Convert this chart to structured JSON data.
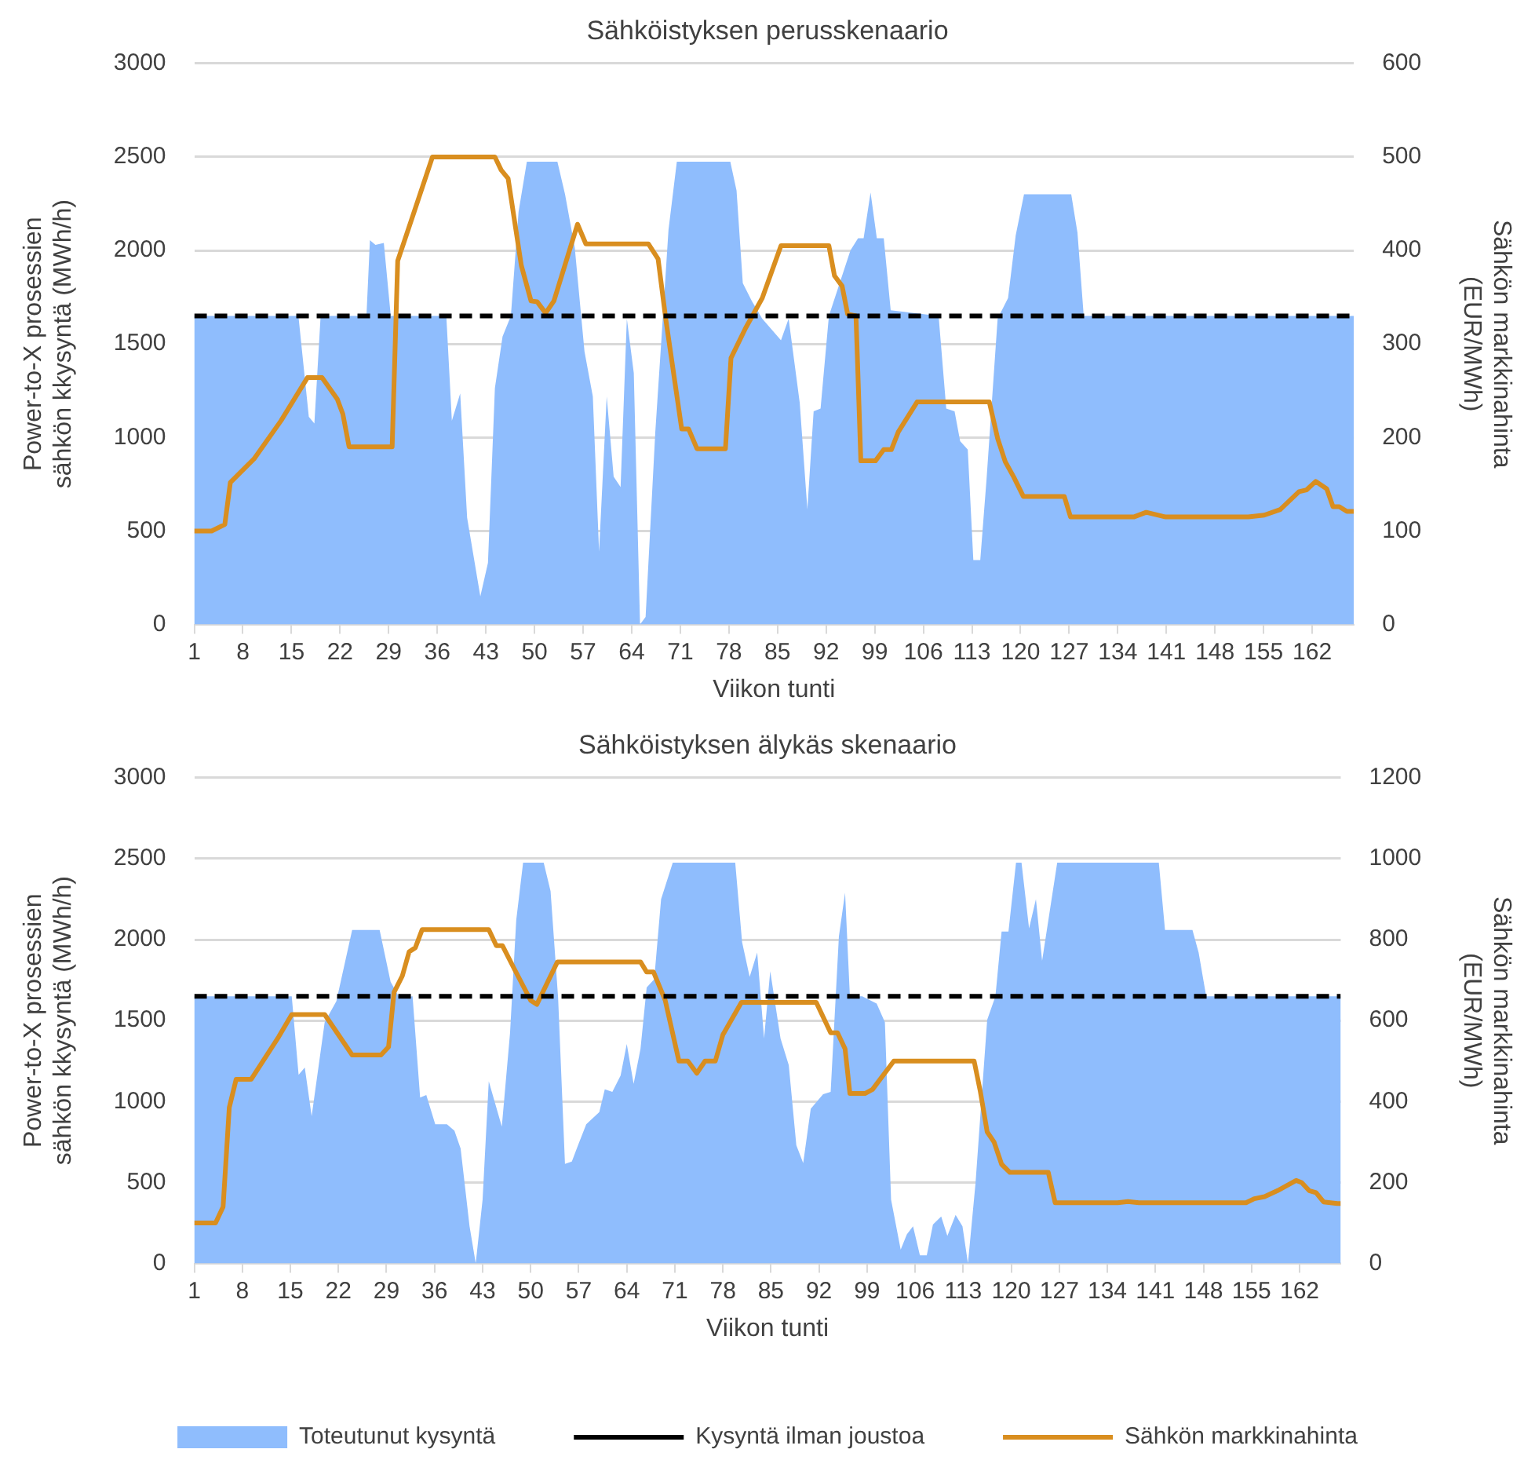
{
  "chart_data": [
    {
      "type": "area",
      "title": "Sähköistyksen perusskenaario",
      "xlabel": "Viikon tunti",
      "ylabel": "Power-to-X prosessien\nsähkön kkysyntä (MWh/h)",
      "y2label": "Sähkön markkinahinta\n(EUR/MWh)",
      "xlim": [
        1,
        168
      ],
      "xticks": [
        1,
        8,
        15,
        22,
        29,
        36,
        43,
        50,
        57,
        64,
        71,
        78,
        85,
        92,
        99,
        106,
        113,
        120,
        127,
        134,
        141,
        148,
        155,
        162
      ],
      "ylim": [
        0,
        3000
      ],
      "yticks": [
        0,
        500,
        1000,
        1500,
        2000,
        2500,
        3000
      ],
      "y2lim": [
        0,
        600
      ],
      "y2ticks": [
        0,
        100,
        200,
        300,
        400,
        500,
        600
      ],
      "grid": "y",
      "legend": false,
      "series": [
        {
          "color": "#8fbdfd",
          "x": [
            1,
            16,
            17.5,
            18.3,
            19.2,
            25.8,
            26.3,
            27.1,
            28.3,
            29.3,
            37.3,
            38.1,
            39.3,
            40.3,
            42.2,
            43.3,
            44.3,
            45.4,
            46.6,
            47.7,
            48.9,
            53.3,
            54.4,
            55.8,
            57.2,
            58.4,
            59.3,
            60.4,
            61.4,
            62.4,
            63.3,
            64.3,
            65.2,
            66,
            67.4,
            68.5,
            69.3,
            70.5,
            78.2,
            79.1,
            80,
            81.3,
            82.8,
            85.5,
            86.6,
            88.2,
            89.3,
            90.2,
            91.2,
            92.4,
            95.5,
            96.6,
            97.4,
            98.4,
            99.3,
            100.3,
            101.3,
            108.2,
            109.3,
            110.5,
            111.3,
            112.4,
            113.2,
            114.2,
            115.1,
            116.7,
            118.2,
            119.3,
            120.5,
            127.3,
            128.2,
            129.1,
            168
          ],
          "values": [
            1650,
            1650,
            1110,
            1075,
            1650,
            1650,
            2055,
            2030,
            2040,
            1650,
            1650,
            1090,
            1235,
            570,
            150,
            330,
            1265,
            1540,
            1650,
            2205,
            2475,
            2475,
            2300,
            2015,
            1460,
            1220,
            390,
            1220,
            790,
            735,
            1635,
            1345,
            0,
            40,
            1030,
            1650,
            2110,
            2475,
            2475,
            2320,
            1825,
            1730,
            1635,
            1520,
            1635,
            1185,
            615,
            1140,
            1155,
            1650,
            2000,
            2065,
            2065,
            2310,
            2065,
            2065,
            1680,
            1650,
            1155,
            1140,
            980,
            935,
            345,
            345,
            775,
            1635,
            1745,
            2080,
            2300,
            2300,
            2095,
            1650,
            1650
          ]
        },
        {
          "type": "line",
          "color": "#000000",
          "line_style": "dashed",
          "x": [
            1,
            8,
            15,
            22,
            29,
            36,
            43,
            50,
            57,
            64,
            71,
            78,
            85,
            92,
            99,
            106,
            113,
            120,
            127,
            134,
            141,
            148,
            155,
            162,
            168
          ],
          "values": [
            1650,
            1650,
            1650,
            1650,
            1650,
            1650,
            1650,
            1650,
            1650,
            1650,
            1650,
            1650,
            1650,
            1650,
            1650,
            1650,
            1650,
            1650,
            1650,
            1650,
            1650,
            1650,
            1650,
            1650,
            1650
          ]
        },
        {
          "type": "line",
          "color": "#d98e1f",
          "axis": "y2",
          "x": [
            1,
            3.5,
            5.4,
            6.2,
            9.6,
            13.5,
            17.3,
            19.4,
            21.6,
            22.4,
            23.3,
            29.5,
            30.3,
            32.7,
            35.3,
            44.3,
            45.2,
            46.2,
            48.1,
            49.5,
            50.4,
            51.6,
            52.8,
            56.2,
            57.4,
            66.4,
            67.8,
            68.9,
            71.2,
            72.2,
            73.4,
            77.5,
            78.3,
            80.4,
            82.8,
            85.5,
            92.4,
            93.2,
            94.3,
            95.1,
            96.3,
            97,
            99.1,
            100.3,
            101.4,
            102.4,
            105.1,
            115.5,
            116.7,
            117.8,
            119,
            120.4,
            126.3,
            127.2,
            136.3,
            138.1,
            140.9,
            152.8,
            155.1,
            157.4,
            160.1,
            161.2,
            162.5,
            164.1,
            165,
            165.9,
            167,
            168
          ],
          "values": [
            100,
            100,
            107,
            152,
            177,
            218,
            264,
            264,
            241,
            225,
            190,
            190,
            389,
            442,
            500,
            500,
            486,
            477,
            384,
            346,
            345,
            333,
            346,
            428,
            407,
            407,
            391,
            327,
            209,
            209,
            188,
            188,
            285,
            317,
            349,
            405,
            405,
            373,
            362,
            332,
            330,
            175,
            175,
            187,
            187,
            206,
            238,
            238,
            199,
            174,
            158,
            137,
            137,
            115,
            115,
            120,
            115,
            115,
            117,
            123,
            142,
            144,
            153,
            145,
            126,
            126,
            121,
            121
          ]
        }
      ]
    },
    {
      "type": "area",
      "title": "Sähköistyksen älykäs skenaario",
      "xlabel": "Viikon tunti",
      "ylabel": "Power-to-X prosessien\nsähkön kkysyntä (MWh/h)",
      "y2label": "Sähkön markkinahinta\n(EUR/MWh)",
      "xlim": [
        1,
        168
      ],
      "xticks": [
        1,
        8,
        15,
        22,
        29,
        36,
        43,
        50,
        57,
        64,
        71,
        78,
        85,
        92,
        99,
        106,
        113,
        120,
        127,
        134,
        141,
        148,
        155,
        162
      ],
      "ylim": [
        0,
        3000
      ],
      "yticks": [
        0,
        500,
        1000,
        1500,
        2000,
        2500,
        3000
      ],
      "y2lim": [
        0,
        1200
      ],
      "y2ticks": [
        0,
        200,
        400,
        600,
        800,
        1000,
        1200
      ],
      "grid": "y",
      "legend": "bottom",
      "series": [
        {
          "name": "Toteutunut kysyntä",
          "color": "#8fbdfd",
          "x": [
            1,
            15.2,
            16.2,
            17.1,
            18.1,
            20,
            21.7,
            24,
            28,
            29.6,
            30.9,
            32.8,
            33.9,
            34.8,
            36.1,
            37.8,
            38.9,
            39.8,
            41.1,
            42,
            43,
            43.9,
            45.8,
            47,
            47.9,
            48.9,
            51.9,
            52.9,
            54,
            55,
            56,
            56.9,
            58.1,
            60,
            60.8,
            61.9,
            63.1,
            64,
            65,
            66,
            66.9,
            68,
            69,
            70.7,
            79.8,
            80.8,
            81.9,
            83,
            84,
            84.9,
            86.4,
            87.6,
            88.7,
            89.7,
            90.8,
            92.6,
            93.7,
            94.9,
            95.8,
            96.5,
            98.3,
            100.4,
            101.6,
            102.5,
            103.9,
            104.8,
            105.7,
            106.7,
            107.7,
            108.6,
            109.8,
            110.7,
            111.9,
            112.9,
            113.7,
            114.8,
            116.5,
            117.7,
            118.6,
            119.6,
            120.7,
            121.5,
            122.6,
            123.6,
            124.5,
            126.7,
            141.5,
            142.4,
            146.4,
            147.3,
            148.4,
            168
          ],
          "values": [
            1650,
            1650,
            1165,
            1210,
            910,
            1490,
            1620,
            2060,
            2060,
            1740,
            1640,
            1650,
            1025,
            1040,
            860,
            860,
            820,
            710,
            230,
            0,
            395,
            1125,
            845,
            1425,
            2120,
            2475,
            2475,
            2300,
            1640,
            615,
            630,
            730,
            860,
            935,
            1075,
            1060,
            1160,
            1355,
            1110,
            1325,
            1705,
            1755,
            2250,
            2475,
            2475,
            1985,
            1770,
            1920,
            1390,
            1805,
            1390,
            1225,
            730,
            620,
            955,
            1045,
            1060,
            2020,
            2290,
            1650,
            1650,
            1605,
            1490,
            395,
            85,
            180,
            230,
            50,
            50,
            240,
            290,
            170,
            300,
            230,
            0,
            495,
            1505,
            1650,
            2050,
            2050,
            2475,
            2475,
            2070,
            2250,
            1870,
            2475,
            2475,
            2060,
            2060,
            1920,
            1650,
            1650
          ]
        },
        {
          "type": "line",
          "name": "Kysyntä ilman joustoa",
          "color": "#000000",
          "line_style": "dashed",
          "x": [
            1,
            8,
            15,
            22,
            29,
            36,
            43,
            50,
            57,
            64,
            71,
            78,
            85,
            92,
            99,
            106,
            113,
            120,
            127,
            134,
            141,
            148,
            155,
            162,
            168
          ],
          "values": [
            1650,
            1650,
            1650,
            1650,
            1650,
            1650,
            1650,
            1650,
            1650,
            1650,
            1650,
            1650,
            1650,
            1650,
            1650,
            1650,
            1650,
            1650,
            1650,
            1650,
            1650,
            1650,
            1650,
            1650,
            1650
          ]
        },
        {
          "type": "line",
          "name": "Sähkön markkinahinta",
          "color": "#d98e1f",
          "axis": "y2",
          "x": [
            1,
            4.1,
            5.2,
            6.1,
            7.1,
            9.3,
            13.3,
            15.2,
            20,
            24,
            28.2,
            29.3,
            30.1,
            31.3,
            32.3,
            33.2,
            34.2,
            43.9,
            45,
            45.9,
            47.7,
            50,
            50.9,
            53.9,
            66,
            66.9,
            67.9,
            69.6,
            71.6,
            72.9,
            74.2,
            75.4,
            76.9,
            78,
            80.7,
            91.6,
            93.7,
            94.7,
            95.8,
            96.5,
            98.7,
            99.8,
            102.9,
            114.6,
            115.5,
            116.5,
            117.5,
            118.6,
            119.8,
            125.4,
            126.4,
            135.5,
            137,
            138.6,
            154.2,
            155.4,
            156.9,
            158.8,
            161.5,
            162.3,
            163.4,
            164.4,
            165.5,
            167.5,
            168
          ],
          "values": [
            100,
            100,
            140,
            385,
            455,
            455,
            560,
            615,
            615,
            515,
            515,
            535,
            670,
            710,
            770,
            780,
            825,
            825,
            785,
            785,
            725,
            650,
            640,
            745,
            745,
            720,
            720,
            650,
            500,
            500,
            470,
            500,
            500,
            565,
            645,
            645,
            570,
            570,
            530,
            420,
            420,
            430,
            500,
            500,
            425,
            325,
            300,
            245,
            225,
            225,
            150,
            150,
            153,
            150,
            150,
            160,
            165,
            180,
            205,
            200,
            180,
            175,
            152,
            148,
            148
          ]
        }
      ]
    }
  ]
}
